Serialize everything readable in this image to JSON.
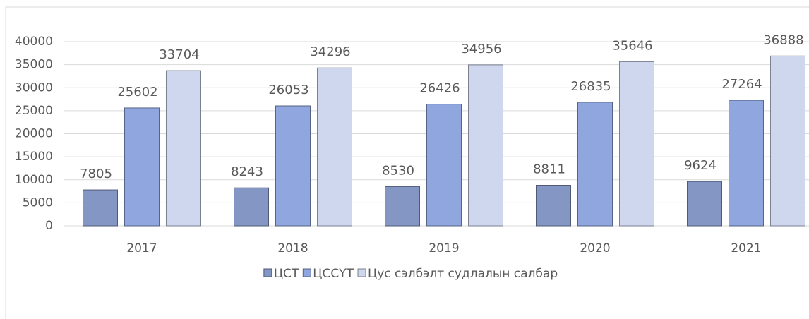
{
  "chart_data": {
    "type": "bar",
    "categories": [
      "2017",
      "2018",
      "2019",
      "2020",
      "2021"
    ],
    "series": [
      {
        "name": "ЦСТ",
        "color": "#8496c4",
        "values": [
          7805,
          8243,
          8530,
          8811,
          9624
        ]
      },
      {
        "name": "ЦССҮТ",
        "color": "#8fa6de",
        "values": [
          25602,
          26053,
          26426,
          26835,
          27264
        ]
      },
      {
        "name": "Цус сэлбэлт судлалын салбар",
        "color": "#cfd7ef",
        "values": [
          33704,
          34296,
          34956,
          35646,
          36888
        ]
      }
    ],
    "ylim": [
      0,
      40000
    ],
    "yticks": [
      0,
      5000,
      10000,
      15000,
      20000,
      25000,
      30000,
      35000,
      40000
    ],
    "grid": true,
    "legend": "bottom"
  }
}
